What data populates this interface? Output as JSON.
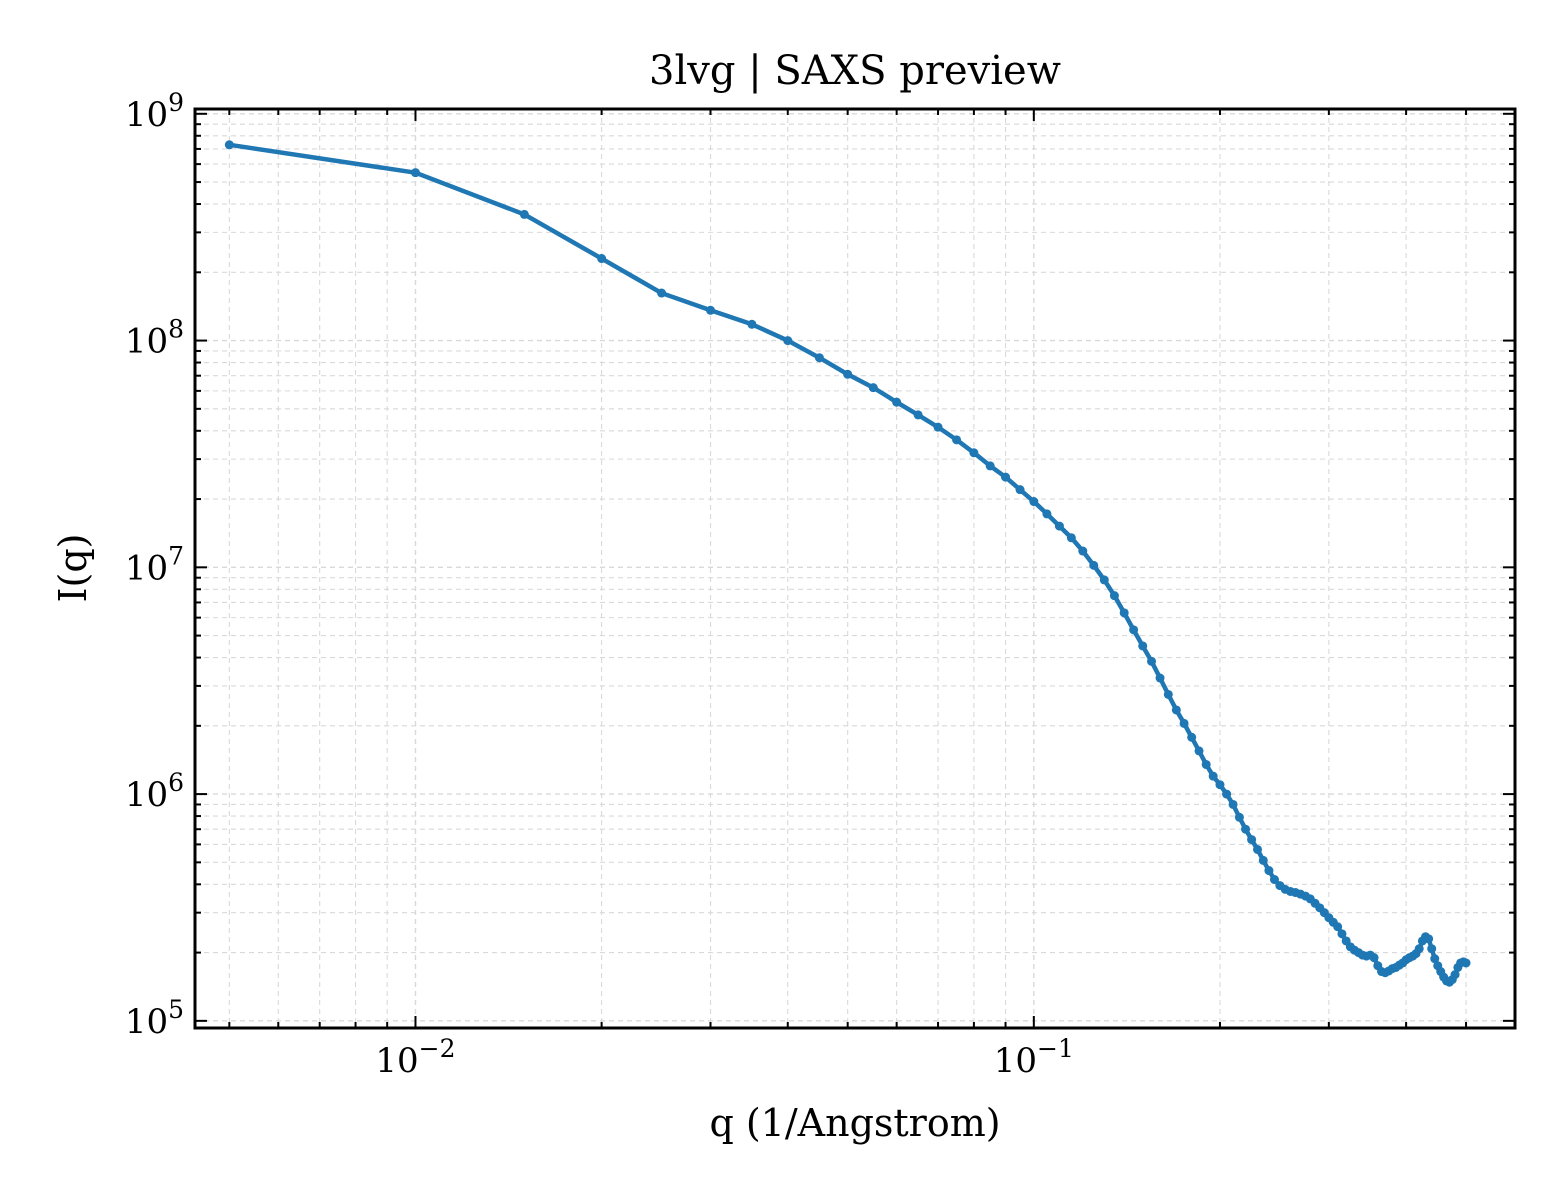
{
  "chart_data": {
    "type": "line",
    "title": "3lvg | SAXS preview",
    "xlabel": "q (1/Angstrom)",
    "ylabel": "I(q)",
    "xscale": "log",
    "yscale": "log",
    "xlim": [
      0.0044,
      0.6
    ],
    "ylim": [
      93000,
      1050000000
    ],
    "grid": true,
    "grid_which": "both",
    "grid_style": "dashed",
    "marker": "dot",
    "line_color": "#1f77b4",
    "x_ticks": [
      {
        "base": "10",
        "exp": "−2"
      },
      {
        "base": "10",
        "exp": "−1"
      }
    ],
    "y_ticks": [
      {
        "base": "10",
        "exp": "5"
      },
      {
        "base": "10",
        "exp": "6"
      },
      {
        "base": "10",
        "exp": "7"
      },
      {
        "base": "10",
        "exp": "8"
      },
      {
        "base": "10",
        "exp": "9"
      }
    ],
    "series": [
      {
        "x": [
          0.005,
          0.01,
          0.015,
          0.02,
          0.025,
          0.03,
          0.035,
          0.04,
          0.045,
          0.05,
          0.055,
          0.06,
          0.065,
          0.07,
          0.075,
          0.08,
          0.085,
          0.09,
          0.095,
          0.1,
          0.105,
          0.11,
          0.115,
          0.12,
          0.125,
          0.13,
          0.135,
          0.14,
          0.145,
          0.15,
          0.155,
          0.16,
          0.165,
          0.17,
          0.175,
          0.18,
          0.185,
          0.19,
          0.195,
          0.2,
          0.205,
          0.21,
          0.215,
          0.22,
          0.225,
          0.23,
          0.235,
          0.24,
          0.245,
          0.25,
          0.255,
          0.26,
          0.265,
          0.27,
          0.275,
          0.28,
          0.285,
          0.29,
          0.295,
          0.3,
          0.305,
          0.31,
          0.315,
          0.32,
          0.325,
          0.33,
          0.335,
          0.34,
          0.345,
          0.35,
          0.355,
          0.36,
          0.365,
          0.37,
          0.375,
          0.38,
          0.385,
          0.39,
          0.395,
          0.4,
          0.405,
          0.41,
          0.415,
          0.42,
          0.425,
          0.43,
          0.435,
          0.44,
          0.445,
          0.45,
          0.455,
          0.46,
          0.465,
          0.47,
          0.475,
          0.48,
          0.485,
          0.49,
          0.495,
          0.5
        ],
        "y": [
          730000000.0,
          550000000.0,
          360000000.0,
          230000000.0,
          162000000.0,
          136000000.0,
          118000000.0,
          100000000.0,
          84000000.0,
          71000000.0,
          62000000.0,
          53500000.0,
          47000000.0,
          41500000.0,
          36500000.0,
          32000000.0,
          28000000.0,
          25000000.0,
          22000000.0,
          19500000.0,
          17200000.0,
          15200000.0,
          13500000.0,
          11800000.0,
          10200000.0,
          8800000.0,
          7500000.0,
          6300000.0,
          5300000.0,
          4500000.0,
          3850000.0,
          3250000.0,
          2750000.0,
          2350000.0,
          2050000.0,
          1780000.0,
          1550000.0,
          1350000.0,
          1200000.0,
          1100000.0,
          1000000.0,
          900000.0,
          790000.0,
          700000.0,
          630000.0,
          570000.0,
          510000.0,
          460000.0,
          420000.0,
          395000.0,
          380000.0,
          372000.0,
          368000.0,
          362000.0,
          355000.0,
          345000.0,
          330000.0,
          315000.0,
          300000.0,
          285000.0,
          272000.0,
          260000.0,
          242000.0,
          225000.0,
          212000.0,
          205000.0,
          200000.0,
          195000.0,
          193000.0,
          195000.0,
          190000.0,
          175000.0,
          165000.0,
          163000.0,
          166000.0,
          170000.0,
          172000.0,
          176000.0,
          180000.0,
          186000.0,
          190000.0,
          193000.0,
          198000.0,
          208000.0,
          225000.0,
          235000.0,
          230000.0,
          208000.0,
          188000.0,
          175000.0,
          165000.0,
          156000.0,
          150000.0,
          148000.0,
          152000.0,
          160000.0,
          172000.0,
          180000.0,
          182000.0,
          180000.0
        ]
      }
    ]
  }
}
